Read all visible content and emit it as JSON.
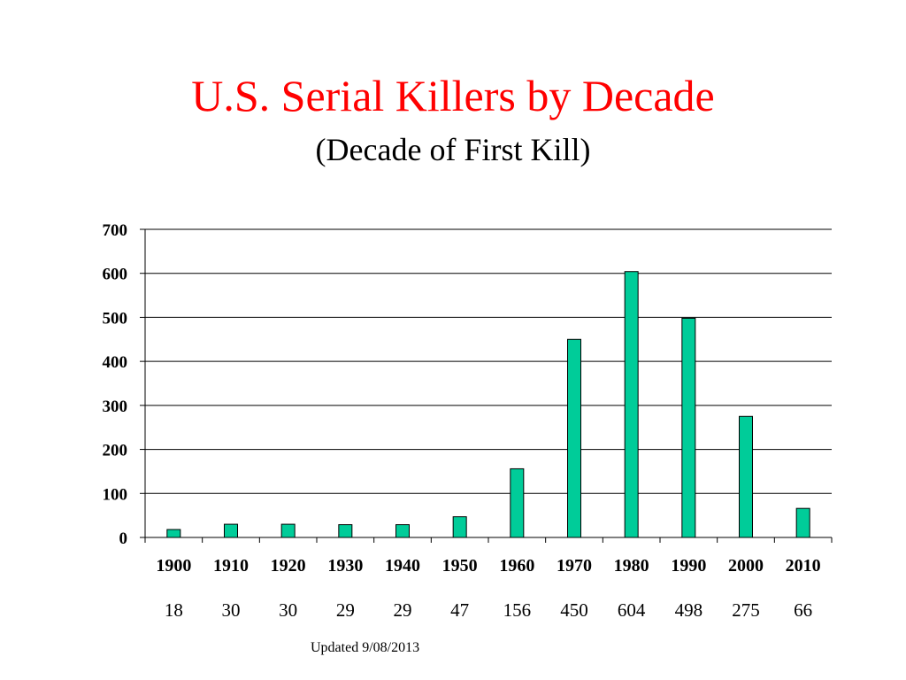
{
  "slide": {
    "title": "U.S. Serial Killers by Decade",
    "subtitle": "(Decade of First Kill)",
    "footer": "Updated 9/08/2013"
  },
  "chart_data": {
    "type": "bar",
    "title": "U.S. Serial Killers by Decade",
    "subtitle": "(Decade of First Kill)",
    "xlabel": "",
    "ylabel": "",
    "categories": [
      "1900",
      "1910",
      "1920",
      "1930",
      "1940",
      "1950",
      "1960",
      "1970",
      "1980",
      "1990",
      "2000",
      "2010"
    ],
    "values": [
      18,
      30,
      30,
      29,
      29,
      47,
      156,
      450,
      604,
      498,
      275,
      66
    ],
    "data_labels": [
      "18",
      "30",
      "30",
      "29",
      "29",
      "47",
      "156",
      "450",
      "604",
      "498",
      "275",
      "66"
    ],
    "ylim": [
      0,
      700
    ],
    "yticks": [
      "0",
      "100",
      "200",
      "300",
      "400",
      "500",
      "600",
      "700"
    ],
    "grid": true,
    "bar_color": "#00cc99",
    "bar_edge_color": "#000000",
    "title_color": "#ff0000"
  }
}
